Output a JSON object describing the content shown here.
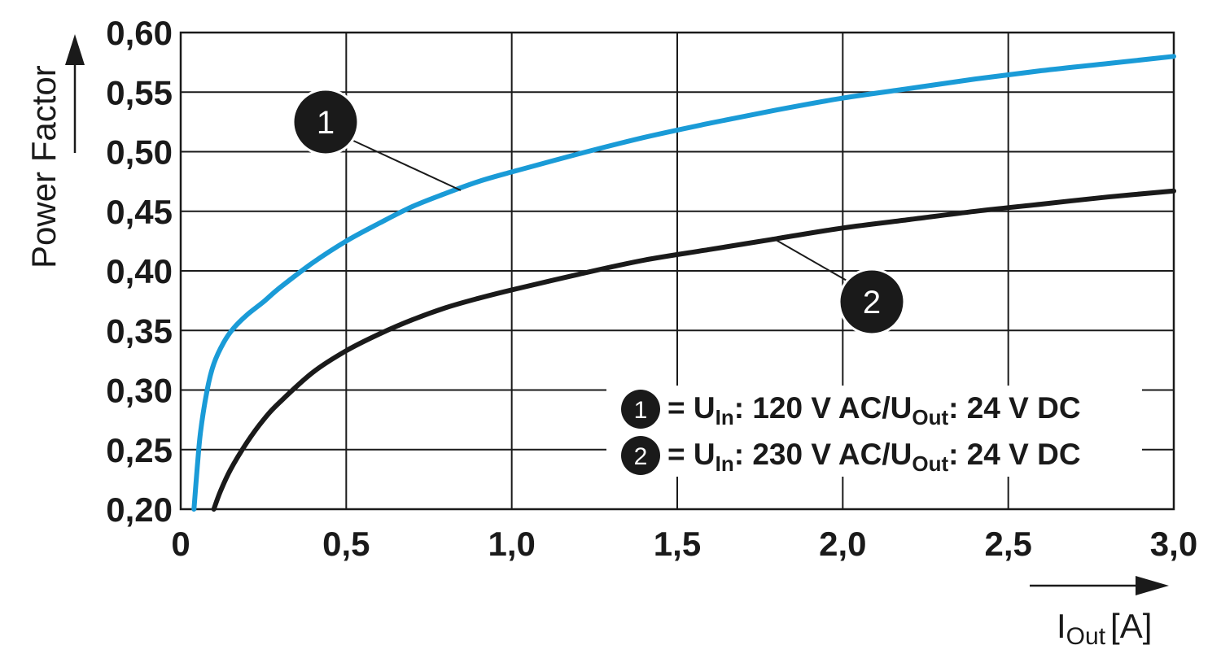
{
  "chart_data": {
    "type": "line",
    "ylabel": "Power Factor",
    "xlabel_main": "I",
    "xlabel_sub": "Out",
    "xlabel_unit": "[A]",
    "xlim": [
      0,
      3.0
    ],
    "ylim": [
      0.2,
      0.6
    ],
    "x_ticks": [
      "0",
      "0,5",
      "1,0",
      "1,5",
      "2,0",
      "2,5",
      "3,0"
    ],
    "x_tick_values": [
      0,
      0.5,
      1.0,
      1.5,
      2.0,
      2.5,
      3.0
    ],
    "y_ticks": [
      "0,20",
      "0,25",
      "0,30",
      "0,35",
      "0,40",
      "0,45",
      "0,50",
      "0,55",
      "0,60"
    ],
    "y_tick_values": [
      0.2,
      0.25,
      0.3,
      0.35,
      0.4,
      0.45,
      0.5,
      0.55,
      0.6
    ],
    "grid": true,
    "legend_position": "bottom-right",
    "series": [
      {
        "marker": "1",
        "color": "#1a9bd7",
        "legend": {
          "pre": "= U",
          "sub1": "In",
          "mid": ": 120 V AC/U",
          "sub2": "Out",
          "post": ": 24 V DC"
        },
        "x": [
          0.04,
          0.05,
          0.06,
          0.08,
          0.1,
          0.13,
          0.16,
          0.2,
          0.25,
          0.3,
          0.4,
          0.5,
          0.6,
          0.7,
          0.8,
          0.9,
          1.0,
          1.2,
          1.4,
          1.6,
          1.8,
          2.0,
          2.2,
          2.4,
          2.6,
          2.8,
          3.0
        ],
        "y": [
          0.2,
          0.235,
          0.265,
          0.3,
          0.322,
          0.34,
          0.352,
          0.363,
          0.374,
          0.386,
          0.407,
          0.425,
          0.44,
          0.454,
          0.465,
          0.475,
          0.483,
          0.498,
          0.512,
          0.524,
          0.535,
          0.545,
          0.553,
          0.561,
          0.568,
          0.574,
          0.58
        ]
      },
      {
        "marker": "2",
        "color": "#1a1a1a",
        "legend": {
          "pre": "= U",
          "sub1": "In",
          "mid": ": 230 V AC/U",
          "sub2": "Out",
          "post": ": 24 V DC"
        },
        "x": [
          0.1,
          0.12,
          0.15,
          0.2,
          0.25,
          0.3,
          0.4,
          0.5,
          0.6,
          0.7,
          0.8,
          0.9,
          1.0,
          1.2,
          1.4,
          1.6,
          1.8,
          2.0,
          2.2,
          2.4,
          2.6,
          2.8,
          3.0
        ],
        "y": [
          0.2,
          0.215,
          0.233,
          0.256,
          0.275,
          0.29,
          0.315,
          0.333,
          0.347,
          0.359,
          0.369,
          0.377,
          0.384,
          0.397,
          0.409,
          0.418,
          0.427,
          0.436,
          0.443,
          0.45,
          0.456,
          0.462,
          0.467
        ]
      }
    ]
  }
}
